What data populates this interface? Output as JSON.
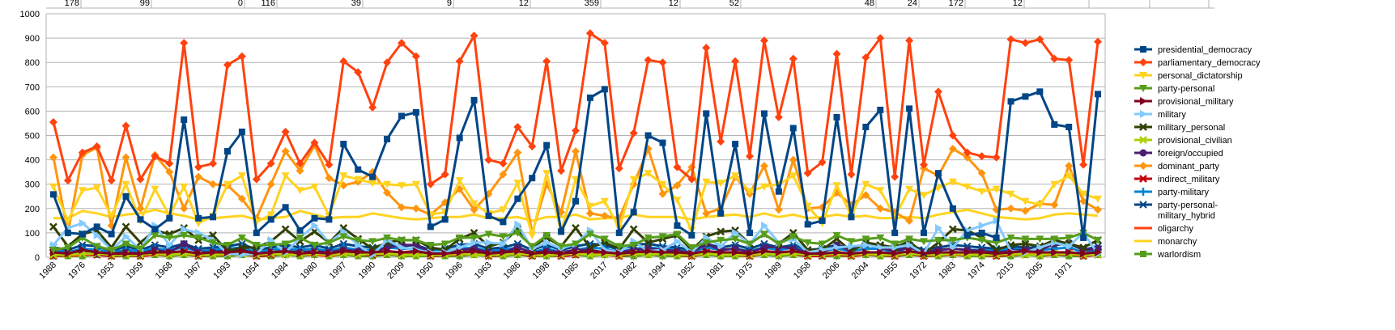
{
  "chart_data": {
    "type": "line",
    "title": "",
    "xlabel": "",
    "ylabel": "",
    "ylim": [
      0,
      1000
    ],
    "yticks": [
      0,
      100,
      200,
      300,
      400,
      500,
      600,
      700,
      800,
      900,
      1000
    ],
    "grid": "horizontal",
    "legend_position": "right",
    "x_tick_labels": [
      "1988",
      "1976",
      "1953",
      "1959",
      "1968",
      "1967",
      "1993",
      "1954",
      "1984",
      "1980",
      "1997",
      "1990",
      "2009",
      "1950",
      "1996",
      "1963",
      "1986",
      "1998",
      "1985",
      "2017",
      "1982",
      "1994",
      "1952",
      "1981",
      "1975",
      "1989",
      "1958",
      "2006",
      "2004",
      "1955",
      "1972",
      "1983",
      "1974",
      "2015",
      "2005",
      "1971"
    ],
    "top_labels": [
      "178",
      "99",
      "0",
      "116",
      "39",
      "9",
      "12",
      "359",
      "12",
      "52",
      "48",
      "24",
      "172",
      "12"
    ],
    "series": [
      {
        "name": "presidential_democracy",
        "color": "#004586",
        "marker": "square",
        "values": [
          258,
          100,
          95,
          125,
          95,
          250,
          155,
          115,
          160,
          565,
          160,
          165,
          435,
          515,
          100,
          155,
          205,
          110,
          160,
          155,
          465,
          360,
          330,
          485,
          580,
          595,
          125,
          155,
          490,
          645,
          170,
          145,
          240,
          325,
          460,
          105,
          230,
          655,
          690,
          100,
          185,
          500,
          470,
          130,
          90,
          590,
          180,
          465,
          100,
          590,
          270,
          530,
          135,
          150,
          575,
          165,
          535,
          605,
          100,
          610,
          100,
          345,
          200,
          90,
          100,
          80,
          640,
          660,
          680,
          545,
          535,
          80,
          670
        ]
      },
      {
        "name": "parliamentary_democracy",
        "color": "#ff420e",
        "marker": "diamond",
        "values": [
          555,
          315,
          430,
          455,
          315,
          540,
          320,
          415,
          385,
          880,
          370,
          385,
          790,
          825,
          320,
          385,
          515,
          385,
          470,
          380,
          805,
          760,
          615,
          800,
          880,
          825,
          300,
          340,
          805,
          910,
          400,
          385,
          535,
          455,
          805,
          355,
          520,
          920,
          880,
          365,
          510,
          810,
          800,
          370,
          320,
          860,
          475,
          805,
          415,
          890,
          575,
          815,
          345,
          390,
          835,
          340,
          820,
          900,
          330,
          890,
          380,
          680,
          500,
          430,
          415,
          410,
          895,
          880,
          895,
          815,
          810,
          380,
          885
        ]
      },
      {
        "name": "personal_dictatorship",
        "color": "#ffd320",
        "marker": "triangle",
        "values": [
          290,
          150,
          275,
          285,
          170,
          300,
          150,
          280,
          170,
          290,
          140,
          170,
          300,
          335,
          145,
          175,
          335,
          275,
          290,
          170,
          335,
          320,
          305,
          300,
          295,
          300,
          175,
          185,
          315,
          220,
          180,
          195,
          305,
          90,
          345,
          105,
          320,
          210,
          230,
          120,
          320,
          345,
          300,
          235,
          110,
          310,
          305,
          335,
          270,
          290,
          300,
          335,
          210,
          140,
          295,
          170,
          300,
          275,
          165,
          280,
          255,
          285,
          310,
          290,
          270,
          280,
          260,
          230,
          215,
          300,
          335,
          260,
          240
        ]
      },
      {
        "name": "party-personal",
        "color": "#579d1c",
        "marker": "triangle",
        "values": [
          30,
          40,
          80,
          45,
          30,
          55,
          35,
          90,
          80,
          90,
          80,
          60,
          50,
          80,
          50,
          50,
          55,
          80,
          50,
          60,
          85,
          70,
          65,
          80,
          70,
          70,
          50,
          55,
          80,
          80,
          95,
          85,
          100,
          45,
          90,
          45,
          55,
          95,
          75,
          45,
          50,
          80,
          85,
          95,
          40,
          60,
          70,
          75,
          55,
          95,
          55,
          85,
          60,
          55,
          90,
          65,
          75,
          80,
          55,
          75,
          65,
          70,
          70,
          80,
          70,
          60,
          80,
          75,
          75,
          75,
          80,
          100,
          70
        ]
      },
      {
        "name": "provisional_military",
        "color": "#7e0021",
        "marker": "arrow",
        "values": [
          20,
          15,
          30,
          20,
          15,
          15,
          15,
          20,
          20,
          25,
          15,
          20,
          20,
          25,
          15,
          20,
          25,
          15,
          20,
          15,
          25,
          20,
          20,
          25,
          20,
          25,
          15,
          15,
          20,
          25,
          15,
          20,
          25,
          15,
          20,
          15,
          20,
          25,
          20,
          15,
          20,
          25,
          20,
          20,
          15,
          25,
          20,
          20,
          15,
          25,
          20,
          25,
          15,
          15,
          20,
          15,
          20,
          20,
          15,
          25,
          15,
          20,
          20,
          20,
          20,
          15,
          20,
          25,
          20,
          20,
          20,
          15,
          20
        ]
      },
      {
        "name": "military",
        "color": "#83caff",
        "marker": "arrow",
        "values": [
          50,
          120,
          140,
          90,
          30,
          85,
          30,
          130,
          50,
          115,
          100,
          70,
          15,
          10,
          15,
          70,
          20,
          80,
          130,
          60,
          105,
          50,
          10,
          70,
          40,
          30,
          20,
          20,
          40,
          60,
          60,
          55,
          135,
          35,
          60,
          35,
          55,
          110,
          30,
          20,
          65,
          25,
          30,
          65,
          20,
          80,
          45,
          100,
          55,
          130,
          60,
          75,
          20,
          30,
          40,
          45,
          50,
          40,
          40,
          50,
          15,
          120,
          40,
          110,
          130,
          150,
          25,
          20,
          40,
          60,
          45,
          100,
          15
        ]
      },
      {
        "name": "military_personal",
        "color": "#314004",
        "marker": "x",
        "values": [
          125,
          45,
          95,
          110,
          40,
          125,
          60,
          110,
          95,
          120,
          70,
          90,
          25,
          40,
          40,
          65,
          115,
          65,
          105,
          60,
          120,
          75,
          35,
          60,
          70,
          70,
          40,
          30,
          75,
          100,
          45,
          60,
          115,
          40,
          80,
          45,
          120,
          40,
          60,
          35,
          115,
          60,
          75,
          90,
          30,
          85,
          105,
          110,
          55,
          95,
          55,
          100,
          30,
          30,
          75,
          25,
          60,
          50,
          40,
          65,
          15,
          60,
          115,
          110,
          80,
          30,
          50,
          55,
          45,
          70,
          55,
          40,
          70
        ]
      },
      {
        "name": "provisional_civilian",
        "color": "#aecf00",
        "marker": "x",
        "values": [
          10,
          10,
          15,
          15,
          10,
          10,
          10,
          15,
          10,
          15,
          10,
          10,
          15,
          15,
          10,
          15,
          10,
          10,
          15,
          10,
          15,
          10,
          15,
          15,
          10,
          10,
          10,
          10,
          15,
          10,
          10,
          10,
          15,
          10,
          10,
          10,
          15,
          10,
          10,
          10,
          15,
          10,
          15,
          10,
          10,
          15,
          10,
          10,
          10,
          15,
          10,
          15,
          10,
          10,
          15,
          10,
          15,
          10,
          10,
          15,
          10,
          10,
          15,
          10,
          10,
          10,
          15,
          10,
          10,
          15,
          15,
          10,
          10
        ]
      },
      {
        "name": "foreign/occupied",
        "color": "#4b1f6f",
        "marker": "circle",
        "values": [
          15,
          15,
          20,
          15,
          15,
          20,
          15,
          30,
          20,
          55,
          20,
          20,
          30,
          30,
          15,
          20,
          25,
          20,
          25,
          20,
          30,
          25,
          20,
          40,
          50,
          50,
          20,
          20,
          30,
          35,
          20,
          20,
          40,
          20,
          25,
          20,
          30,
          30,
          20,
          20,
          30,
          35,
          30,
          25,
          20,
          55,
          30,
          35,
          20,
          40,
          45,
          35,
          20,
          20,
          50,
          25,
          60,
          40,
          25,
          40,
          20,
          30,
          35,
          30,
          25,
          20,
          25,
          30,
          30,
          55,
          60,
          30,
          35
        ]
      },
      {
        "name": "dominant_party",
        "color": "#ff950e",
        "marker": "diamond",
        "values": [
          410,
          100,
          420,
          450,
          130,
          410,
          200,
          420,
          350,
          200,
          330,
          300,
          295,
          240,
          160,
          300,
          435,
          355,
          460,
          325,
          295,
          310,
          350,
          265,
          205,
          200,
          175,
          225,
          280,
          195,
          260,
          340,
          430,
          100,
          300,
          185,
          435,
          180,
          170,
          160,
          300,
          445,
          260,
          295,
          370,
          180,
          200,
          330,
          260,
          375,
          195,
          400,
          200,
          205,
          265,
          215,
          255,
          200,
          185,
          150,
          365,
          335,
          445,
          410,
          345,
          195,
          200,
          190,
          220,
          215,
          375,
          230,
          195
        ]
      },
      {
        "name": "indirect_military",
        "color": "#c5000b",
        "marker": "x",
        "values": [
          5,
          10,
          20,
          10,
          5,
          10,
          5,
          15,
          10,
          20,
          5,
          10,
          15,
          20,
          5,
          10,
          15,
          10,
          15,
          10,
          20,
          10,
          10,
          15,
          10,
          20,
          5,
          10,
          15,
          20,
          5,
          10,
          15,
          5,
          15,
          5,
          10,
          20,
          15,
          5,
          15,
          20,
          15,
          10,
          5,
          20,
          10,
          15,
          5,
          20,
          10,
          15,
          5,
          5,
          15,
          5,
          15,
          10,
          5,
          15,
          5,
          10,
          15,
          10,
          10,
          5,
          15,
          10,
          10,
          15,
          20,
          5,
          10
        ]
      },
      {
        "name": "party-military",
        "color": "#0084d1",
        "marker": "plus",
        "values": [
          30,
          20,
          35,
          30,
          20,
          30,
          25,
          35,
          30,
          40,
          25,
          30,
          35,
          40,
          20,
          30,
          35,
          30,
          35,
          25,
          40,
          30,
          30,
          40,
          35,
          35,
          25,
          25,
          35,
          40,
          25,
          30,
          40,
          20,
          35,
          20,
          30,
          40,
          35,
          20,
          35,
          40,
          35,
          30,
          20,
          40,
          30,
          35,
          25,
          40,
          30,
          40,
          20,
          25,
          35,
          25,
          35,
          35,
          20,
          40,
          20,
          30,
          35,
          30,
          30,
          25,
          35,
          30,
          30,
          35,
          40,
          20,
          30
        ]
      },
      {
        "name": "party-personal-military_hybrid",
        "label": "party-personal-\nmilitary_hybrid",
        "color": "#004586",
        "marker": "star",
        "values": [
          40,
          30,
          50,
          45,
          25,
          45,
          30,
          50,
          40,
          55,
          35,
          40,
          45,
          55,
          30,
          40,
          50,
          40,
          50,
          35,
          55,
          45,
          40,
          55,
          45,
          50,
          30,
          35,
          50,
          55,
          35,
          40,
          55,
          30,
          50,
          30,
          45,
          55,
          50,
          30,
          50,
          55,
          45,
          40,
          30,
          55,
          40,
          50,
          35,
          55,
          40,
          50,
          30,
          35,
          50,
          35,
          50,
          45,
          30,
          50,
          30,
          40,
          50,
          45,
          40,
          35,
          45,
          40,
          40,
          50,
          55,
          30,
          45
        ]
      },
      {
        "name": "oligarchy",
        "color": "#ff420e",
        "marker": "none",
        "values": [
          10,
          5,
          10,
          10,
          5,
          10,
          5,
          10,
          10,
          15,
          5,
          10,
          10,
          15,
          5,
          10,
          15,
          10,
          10,
          5,
          15,
          10,
          10,
          15,
          10,
          15,
          5,
          10,
          10,
          15,
          5,
          10,
          15,
          5,
          10,
          5,
          10,
          15,
          10,
          5,
          15,
          10,
          15,
          10,
          5,
          15,
          10,
          10,
          5,
          15,
          10,
          15,
          5,
          5,
          10,
          5,
          10,
          10,
          5,
          15,
          5,
          10,
          10,
          10,
          10,
          5,
          10,
          15,
          10,
          10,
          15,
          5,
          10
        ]
      },
      {
        "name": "monarchy",
        "color": "#ffd320",
        "marker": "none",
        "values": [
          160,
          160,
          190,
          180,
          165,
          175,
          180,
          195,
          180,
          170,
          155,
          160,
          165,
          170,
          155,
          160,
          165,
          190,
          175,
          160,
          165,
          165,
          180,
          170,
          160,
          155,
          160,
          165,
          165,
          175,
          160,
          160,
          165,
          150,
          165,
          165,
          175,
          155,
          160,
          160,
          175,
          165,
          165,
          165,
          155,
          165,
          170,
          175,
          165,
          180,
          165,
          175,
          160,
          165,
          175,
          165,
          170,
          160,
          160,
          165,
          160,
          175,
          185,
          195,
          180,
          165,
          160,
          155,
          160,
          175,
          180,
          175,
          170
        ]
      },
      {
        "name": "warlordism",
        "color": "#579d1c",
        "marker": "square",
        "values": [
          5,
          5,
          5,
          10,
          5,
          5,
          5,
          10,
          5,
          10,
          5,
          5,
          5,
          10,
          5,
          5,
          10,
          5,
          10,
          5,
          10,
          5,
          5,
          10,
          5,
          5,
          5,
          5,
          5,
          10,
          5,
          5,
          10,
          5,
          5,
          5,
          10,
          5,
          10,
          5,
          5,
          10,
          5,
          5,
          5,
          10,
          5,
          5,
          5,
          10,
          5,
          10,
          5,
          5,
          5,
          5,
          10,
          5,
          5,
          10,
          5,
          5,
          10,
          5,
          5,
          5,
          5,
          10,
          5,
          10,
          5,
          5,
          10
        ]
      }
    ]
  }
}
